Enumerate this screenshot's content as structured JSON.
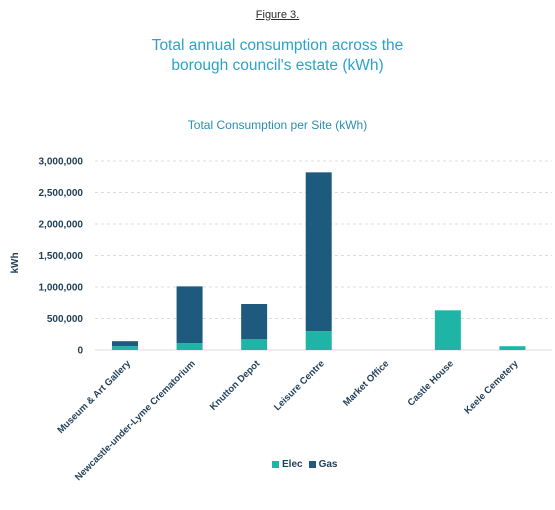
{
  "figure_label": "Figure 3.",
  "main_title_line1": "Total annual consumption across the",
  "main_title_line2": "borough council's estate (kWh)",
  "colors": {
    "elec": "#1fb5a6",
    "gas": "#1e5a7d",
    "grid": "#d9dde2",
    "title": "#2aa3c8"
  },
  "chart_data": {
    "type": "bar",
    "stacked": true,
    "title": "Total Consumption per Site (kWh)",
    "xlabel": "",
    "ylabel": "kWh",
    "ylim": [
      0,
      3000000
    ],
    "ytick_labels": [
      "0",
      "500,000",
      "1,000,000",
      "1,500,000",
      "2,000,000",
      "2,500,000",
      "3,000,000"
    ],
    "grid": true,
    "legend_position": "bottom",
    "categories": [
      "Museum & Art Gallery",
      "Newcastle-under-Lyme Crematorium",
      "Knutton Depot",
      "Leisure Centre",
      "Market Office",
      "Castle House",
      "Keele Cemetery"
    ],
    "series": [
      {
        "name": "Elec",
        "values": [
          60000,
          110000,
          170000,
          300000,
          0,
          630000,
          60000
        ]
      },
      {
        "name": "Gas",
        "values": [
          80000,
          900000,
          560000,
          2520000,
          0,
          0,
          0
        ]
      }
    ]
  }
}
